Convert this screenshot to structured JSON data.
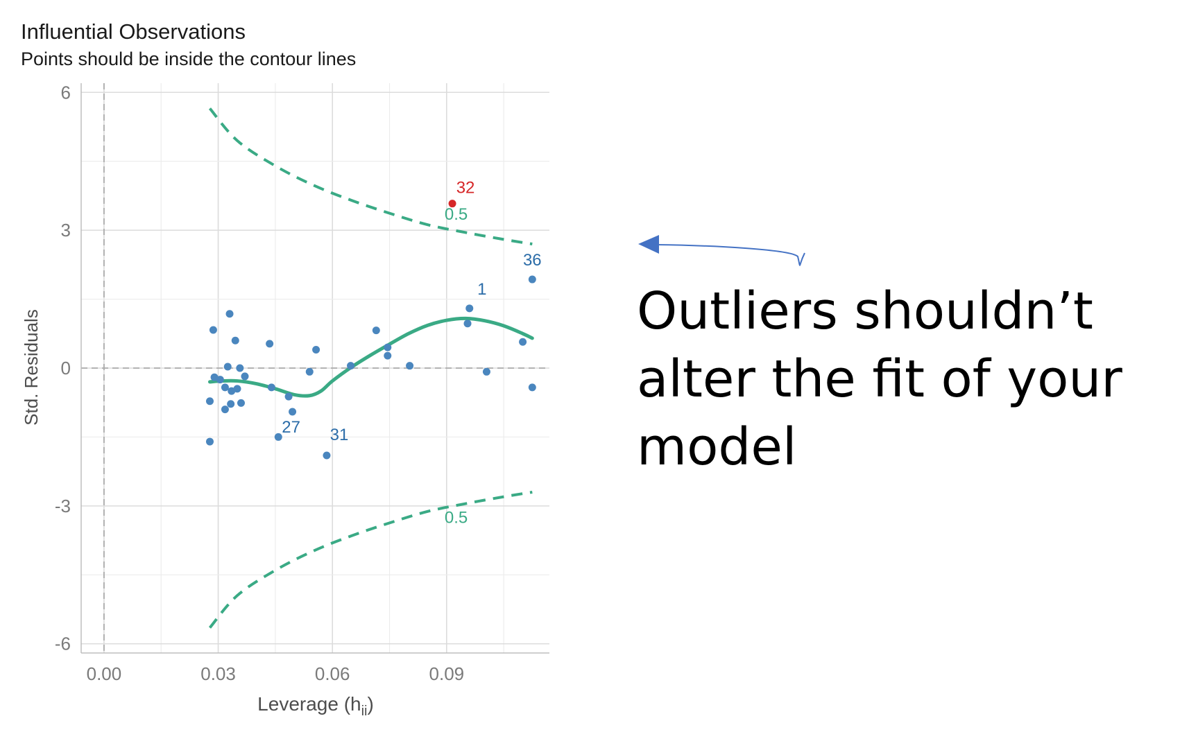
{
  "chart_data": {
    "type": "scatter",
    "title": "Influential Observations",
    "subtitle": "Points should be inside the contour lines",
    "xlabel_main": "Leverage (h",
    "xlabel_sub": "ii",
    "xlabel_close": ")",
    "ylabel": "Std. Residuals",
    "xlim": [
      -0.006,
      0.117
    ],
    "ylim": [
      -6.2,
      6.2
    ],
    "x_ticks": [
      0.0,
      0.03,
      0.06,
      0.09
    ],
    "x_tick_labels": [
      "0.00",
      "0.03",
      "0.06",
      "0.09"
    ],
    "y_ticks": [
      -6,
      -3,
      0,
      3,
      6
    ],
    "y_tick_labels": [
      "-6",
      "-3",
      "0",
      "3",
      "6"
    ],
    "grid": true,
    "colors": {
      "points": "#4a86be",
      "outlier": "#d62728",
      "smooth": "#3aaa85",
      "contour": "#3aaa85",
      "label": "#2b6ca8",
      "reference": "#aaaaaa"
    },
    "points": [
      {
        "x": 0.0278,
        "y": -0.72
      },
      {
        "x": 0.0278,
        "y": -1.6
      },
      {
        "x": 0.0287,
        "y": 0.83
      },
      {
        "x": 0.029,
        "y": -0.2
      },
      {
        "x": 0.0305,
        "y": -0.25
      },
      {
        "x": 0.0318,
        "y": -0.42
      },
      {
        "x": 0.0318,
        "y": -0.9
      },
      {
        "x": 0.0325,
        "y": 0.03
      },
      {
        "x": 0.033,
        "y": 1.18
      },
      {
        "x": 0.0333,
        "y": -0.78
      },
      {
        "x": 0.0335,
        "y": -0.5
      },
      {
        "x": 0.0345,
        "y": 0.6
      },
      {
        "x": 0.035,
        "y": -0.45
      },
      {
        "x": 0.0357,
        "y": 0.0
      },
      {
        "x": 0.036,
        "y": -0.76
      },
      {
        "x": 0.037,
        "y": -0.18
      },
      {
        "x": 0.0435,
        "y": 0.53
      },
      {
        "x": 0.044,
        "y": -0.42
      },
      {
        "x": 0.0458,
        "y": -1.5
      },
      {
        "x": 0.0485,
        "y": -0.62
      },
      {
        "x": 0.0495,
        "y": -0.95
      },
      {
        "x": 0.054,
        "y": -0.08
      },
      {
        "x": 0.0557,
        "y": 0.4
      },
      {
        "x": 0.0585,
        "y": -1.9
      },
      {
        "x": 0.0648,
        "y": 0.05
      },
      {
        "x": 0.0715,
        "y": 0.82
      },
      {
        "x": 0.0745,
        "y": 0.45
      },
      {
        "x": 0.0745,
        "y": 0.27
      },
      {
        "x": 0.0803,
        "y": 0.05
      },
      {
        "x": 0.0955,
        "y": 0.97
      },
      {
        "x": 0.096,
        "y": 1.3
      },
      {
        "x": 0.1005,
        "y": -0.08
      },
      {
        "x": 0.11,
        "y": 0.57
      },
      {
        "x": 0.1125,
        "y": 1.93
      },
      {
        "x": 0.1125,
        "y": -0.42
      }
    ],
    "outliers": [
      {
        "x": 0.0915,
        "y": 3.58,
        "label": "32"
      }
    ],
    "point_labels": [
      {
        "text": "36",
        "x": 0.1125,
        "y": 1.93,
        "dx": 0,
        "dy": -20
      },
      {
        "text": "1",
        "x": 0.096,
        "y": 1.3,
        "dx": 18,
        "dy": -20
      },
      {
        "text": "27",
        "x": 0.0495,
        "y": -0.95,
        "dx": -2,
        "dy": 30
      },
      {
        "text": "31",
        "x": 0.0585,
        "y": -1.9,
        "dx": 18,
        "dy": -22
      }
    ],
    "smooth_curve": {
      "x": [
        0.0278,
        0.031,
        0.035,
        0.04,
        0.045,
        0.05,
        0.054,
        0.057,
        0.06,
        0.065,
        0.07,
        0.075,
        0.08,
        0.085,
        0.09,
        0.095,
        0.1,
        0.105,
        0.11,
        0.1125
      ],
      "y": [
        -0.3,
        -0.28,
        -0.28,
        -0.34,
        -0.45,
        -0.58,
        -0.6,
        -0.5,
        -0.28,
        0.02,
        0.28,
        0.52,
        0.75,
        0.93,
        1.04,
        1.08,
        1.03,
        0.92,
        0.75,
        0.65
      ]
    },
    "contour_upper": {
      "label": "0.5",
      "x": [
        0.0278,
        0.035,
        0.045,
        0.055,
        0.065,
        0.075,
        0.085,
        0.095,
        0.105,
        0.1125
      ],
      "y": [
        5.65,
        4.95,
        4.4,
        3.98,
        3.65,
        3.37,
        3.12,
        2.95,
        2.8,
        2.7
      ]
    },
    "contour_lower": {
      "label": "0.5",
      "x": [
        0.0278,
        0.035,
        0.045,
        0.055,
        0.065,
        0.075,
        0.085,
        0.095,
        0.105,
        0.1125
      ],
      "y": [
        -5.65,
        -4.95,
        -4.4,
        -3.98,
        -3.65,
        -3.37,
        -3.12,
        -2.95,
        -2.8,
        -2.7
      ]
    },
    "contour_label_positions": [
      {
        "x": 0.0925,
        "y": 3.35
      },
      {
        "x": 0.0925,
        "y": -3.25
      }
    ]
  },
  "callout": {
    "text": "Outliers shouldn’t alter the fit of your model",
    "arrow_color": "#4472c4"
  }
}
